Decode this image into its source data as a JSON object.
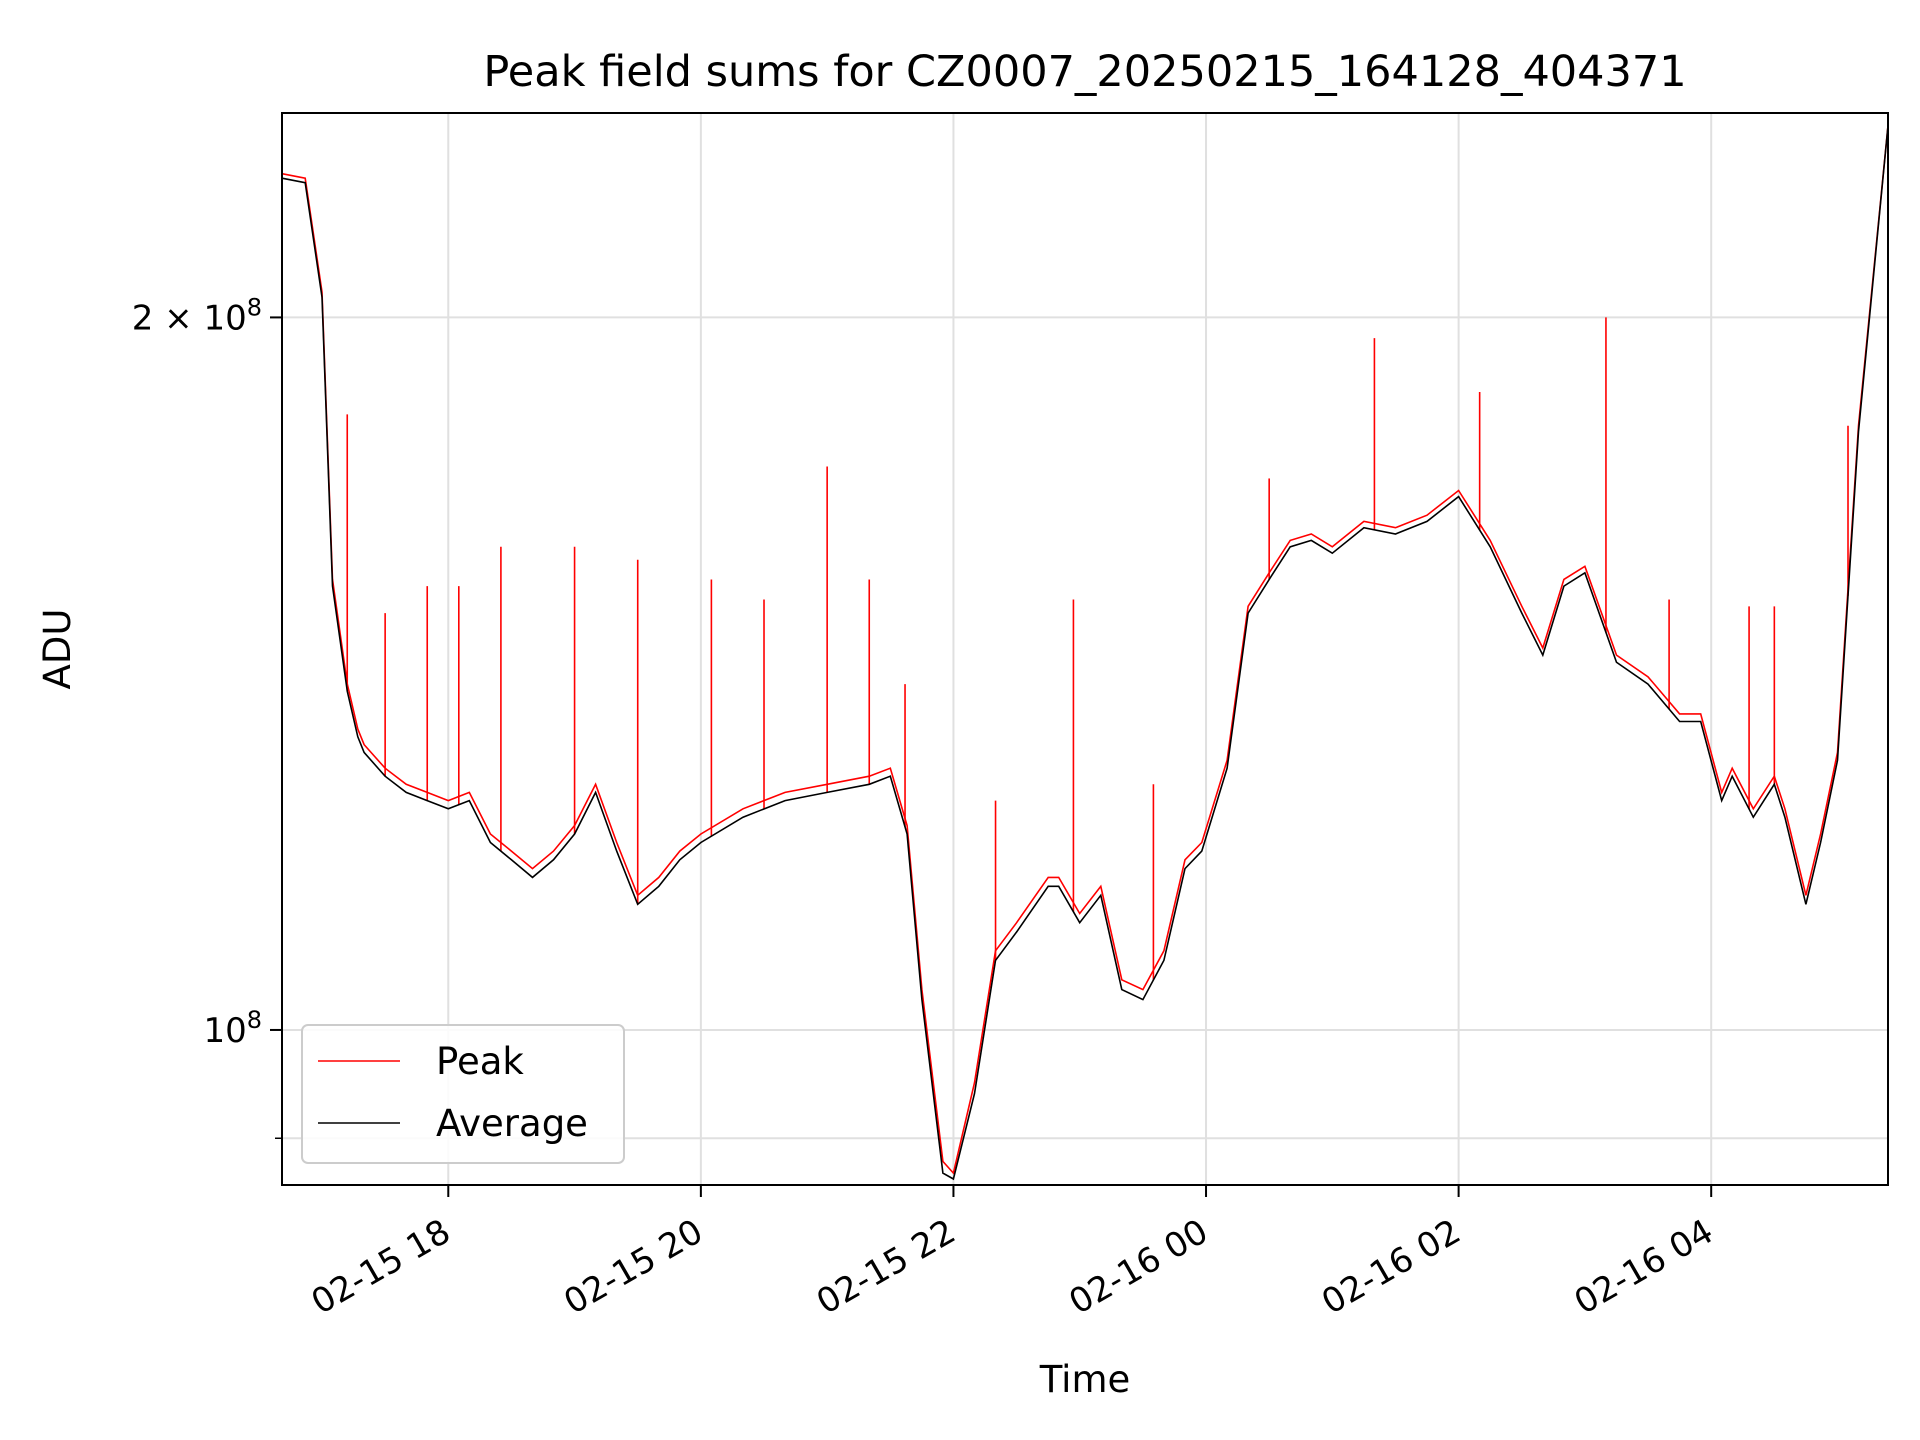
{
  "chart_data": {
    "type": "line",
    "title": "Peak field sums for CZ0007_20250215_164128_404371",
    "xlabel": "Time",
    "ylabel": "ADU",
    "yscale": "log",
    "xlim": [
      "2025-02-15T16:41",
      "2025-02-16T05:24"
    ],
    "ylim": [
      86000000,
      244000000
    ],
    "grid": true,
    "legend_position": "lower-left",
    "x_ticks": [
      {
        "x": "2025-02-15T18:00",
        "label": "02-15 18"
      },
      {
        "x": "2025-02-15T20:00",
        "label": "02-15 20"
      },
      {
        "x": "2025-02-15T22:00",
        "label": "02-15 22"
      },
      {
        "x": "2025-02-16T00:00",
        "label": "02-16 00"
      },
      {
        "x": "2025-02-16T02:00",
        "label": "02-16 02"
      },
      {
        "x": "2025-02-16T04:00",
        "label": "02-16 04"
      }
    ],
    "y_ticks": [
      {
        "y": 100000000,
        "label_base": "10",
        "label_exp": "8",
        "label_prefix": ""
      },
      {
        "y": 200000000,
        "label_base": "10",
        "label_exp": "8",
        "label_prefix": "2 × "
      }
    ],
    "series": [
      {
        "name": "Peak",
        "color": "#ff0000",
        "x": [
          "2025-02-15T16:41",
          "2025-02-15T16:52",
          "2025-02-15T17:00",
          "2025-02-15T17:05",
          "2025-02-15T17:12",
          "2025-02-15T17:17",
          "2025-02-15T17:20",
          "2025-02-15T17:30",
          "2025-02-15T17:40",
          "2025-02-15T17:50",
          "2025-02-15T18:00",
          "2025-02-15T18:10",
          "2025-02-15T18:20",
          "2025-02-15T18:30",
          "2025-02-15T18:40",
          "2025-02-15T18:50",
          "2025-02-15T19:00",
          "2025-02-15T19:10",
          "2025-02-15T19:20",
          "2025-02-15T19:30",
          "2025-02-15T19:40",
          "2025-02-15T19:50",
          "2025-02-15T20:00",
          "2025-02-15T20:20",
          "2025-02-15T20:40",
          "2025-02-15T21:00",
          "2025-02-15T21:20",
          "2025-02-15T21:30",
          "2025-02-15T21:38",
          "2025-02-15T21:45",
          "2025-02-15T21:55",
          "2025-02-15T22:00",
          "2025-02-15T22:10",
          "2025-02-15T22:20",
          "2025-02-15T22:30",
          "2025-02-15T22:45",
          "2025-02-15T22:50",
          "2025-02-15T23:00",
          "2025-02-15T23:10",
          "2025-02-15T23:20",
          "2025-02-15T23:30",
          "2025-02-15T23:40",
          "2025-02-15T23:50",
          "2025-02-15T23:58",
          "2025-02-16T00:10",
          "2025-02-16T00:20",
          "2025-02-16T00:30",
          "2025-02-16T00:40",
          "2025-02-16T00:50",
          "2025-02-16T01:00",
          "2025-02-16T01:15",
          "2025-02-16T01:30",
          "2025-02-16T01:45",
          "2025-02-16T02:00",
          "2025-02-16T02:15",
          "2025-02-16T02:30",
          "2025-02-16T02:40",
          "2025-02-16T02:50",
          "2025-02-16T03:00",
          "2025-02-16T03:15",
          "2025-02-16T03:30",
          "2025-02-16T03:45",
          "2025-02-16T03:55",
          "2025-02-16T04:05",
          "2025-02-16T04:10",
          "2025-02-16T04:20",
          "2025-02-16T04:30",
          "2025-02-16T04:35",
          "2025-02-16T04:45",
          "2025-02-16T04:52",
          "2025-02-16T05:00",
          "2025-02-16T05:10",
          "2025-02-16T05:24"
        ],
        "values": [
          230000000,
          229000000,
          205000000,
          155000000,
          140000000,
          134000000,
          132000000,
          129000000,
          127000000,
          126000000,
          125000000,
          126000000,
          121000000,
          119000000,
          117000000,
          119000000,
          122000000,
          127000000,
          120000000,
          114000000,
          116000000,
          119000000,
          121000000,
          124000000,
          126000000,
          127000000,
          128000000,
          129000000,
          122000000,
          104000000,
          88000000,
          87000000,
          95000000,
          108000000,
          111000000,
          116000000,
          116000000,
          112000000,
          115000000,
          105000000,
          104000000,
          108000000,
          118000000,
          120000000,
          130000000,
          151000000,
          156000000,
          161000000,
          162000000,
          160000000,
          164000000,
          163000000,
          165000000,
          169000000,
          161000000,
          151000000,
          145000000,
          155000000,
          157000000,
          144000000,
          141000000,
          136000000,
          136000000,
          126000000,
          129000000,
          124000000,
          128000000,
          124000000,
          114000000,
          121000000,
          131000000,
          180000000,
          241000000
        ],
        "spikes": [
          {
            "x": "2025-02-15T17:12",
            "value": 182000000
          },
          {
            "x": "2025-02-15T17:30",
            "value": 150000000
          },
          {
            "x": "2025-02-15T17:50",
            "value": 154000000
          },
          {
            "x": "2025-02-15T18:05",
            "value": 154000000
          },
          {
            "x": "2025-02-15T18:25",
            "value": 160000000
          },
          {
            "x": "2025-02-15T19:00",
            "value": 160000000
          },
          {
            "x": "2025-02-15T19:30",
            "value": 158000000
          },
          {
            "x": "2025-02-15T20:05",
            "value": 155000000
          },
          {
            "x": "2025-02-15T20:30",
            "value": 152000000
          },
          {
            "x": "2025-02-15T21:00",
            "value": 173000000
          },
          {
            "x": "2025-02-15T21:20",
            "value": 155000000
          },
          {
            "x": "2025-02-15T21:37",
            "value": 140000000
          },
          {
            "x": "2025-02-15T22:20",
            "value": 125000000
          },
          {
            "x": "2025-02-15T22:57",
            "value": 152000000
          },
          {
            "x": "2025-02-15T23:35",
            "value": 127000000
          },
          {
            "x": "2025-02-16T00:30",
            "value": 171000000
          },
          {
            "x": "2025-02-16T01:20",
            "value": 196000000
          },
          {
            "x": "2025-02-16T02:10",
            "value": 186000000
          },
          {
            "x": "2025-02-16T03:10",
            "value": 200000000
          },
          {
            "x": "2025-02-16T03:40",
            "value": 152000000
          },
          {
            "x": "2025-02-16T04:18",
            "value": 151000000
          },
          {
            "x": "2025-02-16T04:30",
            "value": 151000000
          },
          {
            "x": "2025-02-16T05:05",
            "value": 180000000
          }
        ]
      },
      {
        "name": "Average",
        "color": "#000000",
        "x": [
          "2025-02-15T16:41",
          "2025-02-15T16:52",
          "2025-02-15T17:00",
          "2025-02-15T17:05",
          "2025-02-15T17:12",
          "2025-02-15T17:17",
          "2025-02-15T17:20",
          "2025-02-15T17:30",
          "2025-02-15T17:40",
          "2025-02-15T17:50",
          "2025-02-15T18:00",
          "2025-02-15T18:10",
          "2025-02-15T18:20",
          "2025-02-15T18:30",
          "2025-02-15T18:40",
          "2025-02-15T18:50",
          "2025-02-15T19:00",
          "2025-02-15T19:10",
          "2025-02-15T19:20",
          "2025-02-15T19:30",
          "2025-02-15T19:40",
          "2025-02-15T19:50",
          "2025-02-15T20:00",
          "2025-02-15T20:20",
          "2025-02-15T20:40",
          "2025-02-15T21:00",
          "2025-02-15T21:20",
          "2025-02-15T21:30",
          "2025-02-15T21:38",
          "2025-02-15T21:45",
          "2025-02-15T21:55",
          "2025-02-15T22:00",
          "2025-02-15T22:10",
          "2025-02-15T22:20",
          "2025-02-15T22:30",
          "2025-02-15T22:45",
          "2025-02-15T22:50",
          "2025-02-15T23:00",
          "2025-02-15T23:10",
          "2025-02-15T23:20",
          "2025-02-15T23:30",
          "2025-02-15T23:40",
          "2025-02-15T23:50",
          "2025-02-15T23:58",
          "2025-02-16T00:10",
          "2025-02-16T00:20",
          "2025-02-16T00:30",
          "2025-02-16T00:40",
          "2025-02-16T00:50",
          "2025-02-16T01:00",
          "2025-02-16T01:15",
          "2025-02-16T01:30",
          "2025-02-16T01:45",
          "2025-02-16T02:00",
          "2025-02-16T02:15",
          "2025-02-16T02:30",
          "2025-02-16T02:40",
          "2025-02-16T02:50",
          "2025-02-16T03:00",
          "2025-02-16T03:15",
          "2025-02-16T03:30",
          "2025-02-16T03:45",
          "2025-02-16T03:55",
          "2025-02-16T04:05",
          "2025-02-16T04:10",
          "2025-02-16T04:20",
          "2025-02-16T04:30",
          "2025-02-16T04:35",
          "2025-02-16T04:45",
          "2025-02-16T04:52",
          "2025-02-16T05:00",
          "2025-02-16T05:10",
          "2025-02-16T05:24"
        ],
        "values": [
          229000000,
          228000000,
          204000000,
          154000000,
          139000000,
          133000000,
          131000000,
          128000000,
          126000000,
          125000000,
          124000000,
          125000000,
          120000000,
          118000000,
          116000000,
          118000000,
          121000000,
          126000000,
          119000000,
          113000000,
          115000000,
          118000000,
          120000000,
          123000000,
          125000000,
          126000000,
          127000000,
          128000000,
          121000000,
          103000000,
          87000000,
          86500000,
          94000000,
          107000000,
          110000000,
          115000000,
          115000000,
          111000000,
          114000000,
          104000000,
          103000000,
          107000000,
          117000000,
          119000000,
          129000000,
          150000000,
          155000000,
          160000000,
          161000000,
          159000000,
          163000000,
          162000000,
          164000000,
          168000000,
          160000000,
          150000000,
          144000000,
          154000000,
          156000000,
          143000000,
          140000000,
          135000000,
          135000000,
          125000000,
          128000000,
          123000000,
          127000000,
          123000000,
          113000000,
          120000000,
          130000000,
          179000000,
          241000000
        ]
      }
    ]
  }
}
